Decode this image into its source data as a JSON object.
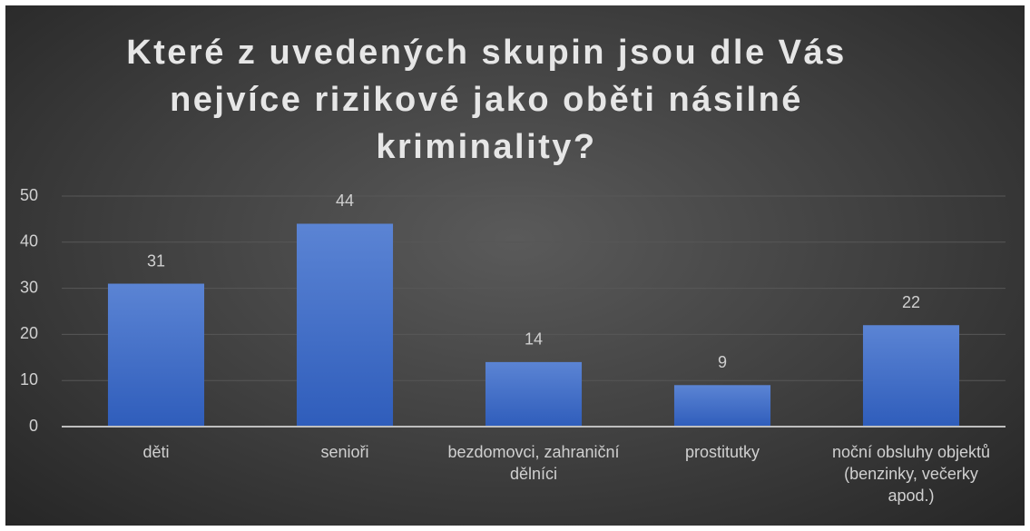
{
  "chart_data": {
    "type": "bar",
    "title": "Které z uvedených skupin jsou dle Vás nejvíce rizikové jako oběti násilné kriminality?",
    "categories": [
      "děti",
      "senioři",
      "bezdomovci, zahraniční dělníci",
      "prostitutky",
      "noční obsluhy objektů (benzinky, večerky apod.)"
    ],
    "values": [
      31,
      44,
      14,
      9,
      22
    ],
    "color": "#4472c4",
    "ylim": [
      0,
      50
    ],
    "yticks": [
      0,
      10,
      20,
      30,
      40,
      50
    ],
    "grid": true
  }
}
